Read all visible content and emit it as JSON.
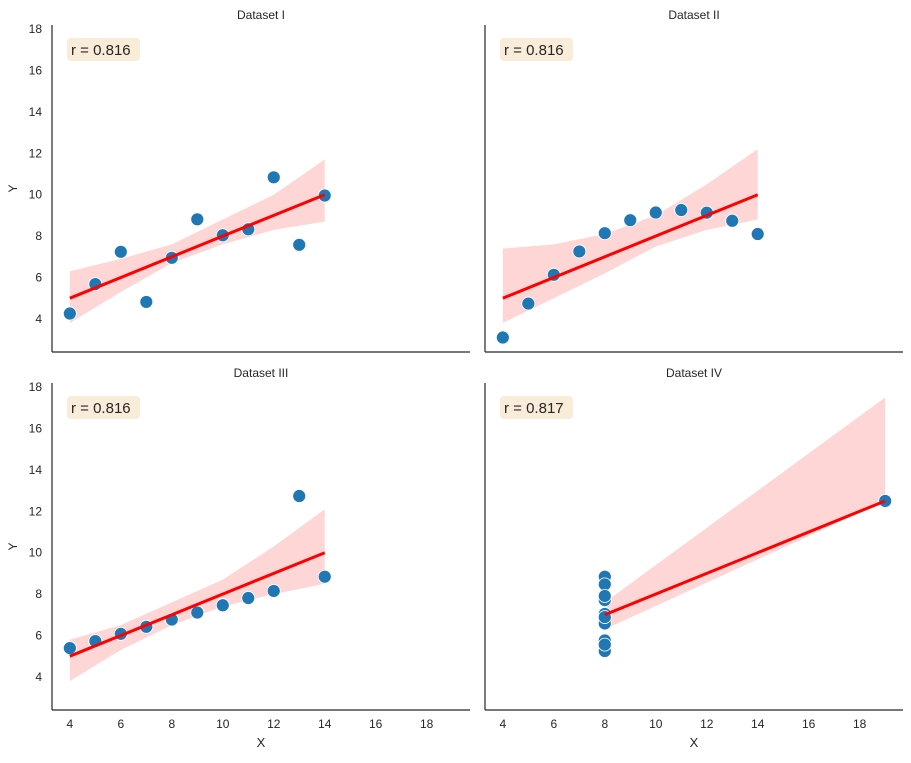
{
  "colors": {
    "point": "#1f77b4",
    "line": "#ff0000",
    "band": "#ffcccc",
    "badge": "#f9ecd9",
    "axis": "#262626"
  },
  "chart_data": [
    {
      "type": "scatter",
      "title": "Dataset I",
      "annotation": "r = 0.816",
      "xlabel": "",
      "ylabel": "Y",
      "xlim": [
        3.3,
        19.7
      ],
      "ylim": [
        2.4,
        18.2
      ],
      "xticks": [
        "4",
        "6",
        "8",
        "10",
        "12",
        "14",
        "16",
        "18"
      ],
      "yticks": [
        "4",
        "6",
        "8",
        "10",
        "12",
        "14",
        "16",
        "18"
      ],
      "x": [
        10,
        8,
        13,
        9,
        11,
        14,
        6,
        4,
        12,
        7,
        5
      ],
      "y": [
        8.04,
        6.95,
        7.58,
        8.81,
        8.33,
        9.96,
        7.24,
        4.26,
        10.84,
        4.82,
        5.68
      ],
      "fit": {
        "x": [
          4,
          14
        ],
        "y": [
          5.0,
          10.0
        ]
      },
      "ci": {
        "x": [
          4,
          6,
          8,
          10,
          12,
          14
        ],
        "lower": [
          3.8,
          5.3,
          6.7,
          7.6,
          8.3,
          8.7
        ],
        "upper": [
          6.3,
          6.9,
          7.6,
          8.8,
          10.0,
          11.7
        ]
      }
    },
    {
      "type": "scatter",
      "title": "Dataset II",
      "annotation": "r = 0.816",
      "xlabel": "",
      "ylabel": "",
      "xlim": [
        3.3,
        19.7
      ],
      "ylim": [
        2.4,
        18.2
      ],
      "xticks": [
        "4",
        "6",
        "8",
        "10",
        "12",
        "14",
        "16",
        "18"
      ],
      "yticks": [
        "4",
        "6",
        "8",
        "10",
        "12",
        "14",
        "16",
        "18"
      ],
      "x": [
        10,
        8,
        13,
        9,
        11,
        14,
        6,
        4,
        12,
        7,
        5
      ],
      "y": [
        9.14,
        8.14,
        8.74,
        8.77,
        9.26,
        8.1,
        6.13,
        3.1,
        9.13,
        7.26,
        4.74
      ],
      "fit": {
        "x": [
          4,
          14
        ],
        "y": [
          5.0,
          10.0
        ]
      },
      "ci": {
        "x": [
          4,
          6,
          8,
          10,
          12,
          14
        ],
        "lower": [
          3.8,
          5.0,
          6.2,
          7.5,
          8.3,
          8.8
        ],
        "upper": [
          7.4,
          7.6,
          8.1,
          9.0,
          10.5,
          12.2
        ]
      }
    },
    {
      "type": "scatter",
      "title": "Dataset III",
      "annotation": "r = 0.816",
      "xlabel": "X",
      "ylabel": "Y",
      "xlim": [
        3.3,
        19.7
      ],
      "ylim": [
        2.4,
        18.2
      ],
      "xticks": [
        "4",
        "6",
        "8",
        "10",
        "12",
        "14",
        "16",
        "18"
      ],
      "yticks": [
        "4",
        "6",
        "8",
        "10",
        "12",
        "14",
        "16",
        "18"
      ],
      "x": [
        10,
        8,
        13,
        9,
        11,
        14,
        6,
        4,
        12,
        7,
        5
      ],
      "y": [
        7.46,
        6.77,
        12.74,
        7.11,
        7.81,
        8.84,
        6.08,
        5.39,
        8.15,
        6.42,
        5.73
      ],
      "fit": {
        "x": [
          4,
          14
        ],
        "y": [
          5.0,
          10.0
        ]
      },
      "ci": {
        "x": [
          4,
          6,
          8,
          10,
          12,
          14
        ],
        "lower": [
          3.8,
          5.3,
          6.5,
          7.4,
          8.0,
          8.5
        ],
        "upper": [
          5.8,
          6.5,
          7.6,
          8.7,
          10.3,
          12.1
        ]
      }
    },
    {
      "type": "scatter",
      "title": "Dataset IV",
      "annotation": "r = 0.817",
      "xlabel": "X",
      "ylabel": "",
      "xlim": [
        3.3,
        19.7
      ],
      "ylim": [
        2.4,
        18.2
      ],
      "xticks": [
        "4",
        "6",
        "8",
        "10",
        "12",
        "14",
        "16",
        "18"
      ],
      "yticks": [
        "4",
        "6",
        "8",
        "10",
        "12",
        "14",
        "16",
        "18"
      ],
      "x": [
        8,
        8,
        8,
        8,
        8,
        8,
        8,
        19,
        8,
        8,
        8
      ],
      "y": [
        6.58,
        5.76,
        7.71,
        8.84,
        8.47,
        7.04,
        5.25,
        12.5,
        5.56,
        7.91,
        6.89
      ],
      "fit": {
        "x": [
          8,
          19
        ],
        "y": [
          7.0,
          12.5
        ]
      },
      "ci": {
        "x": [
          8,
          19
        ],
        "lower": [
          6.3,
          12.5
        ],
        "upper": [
          7.6,
          17.5
        ]
      }
    }
  ]
}
